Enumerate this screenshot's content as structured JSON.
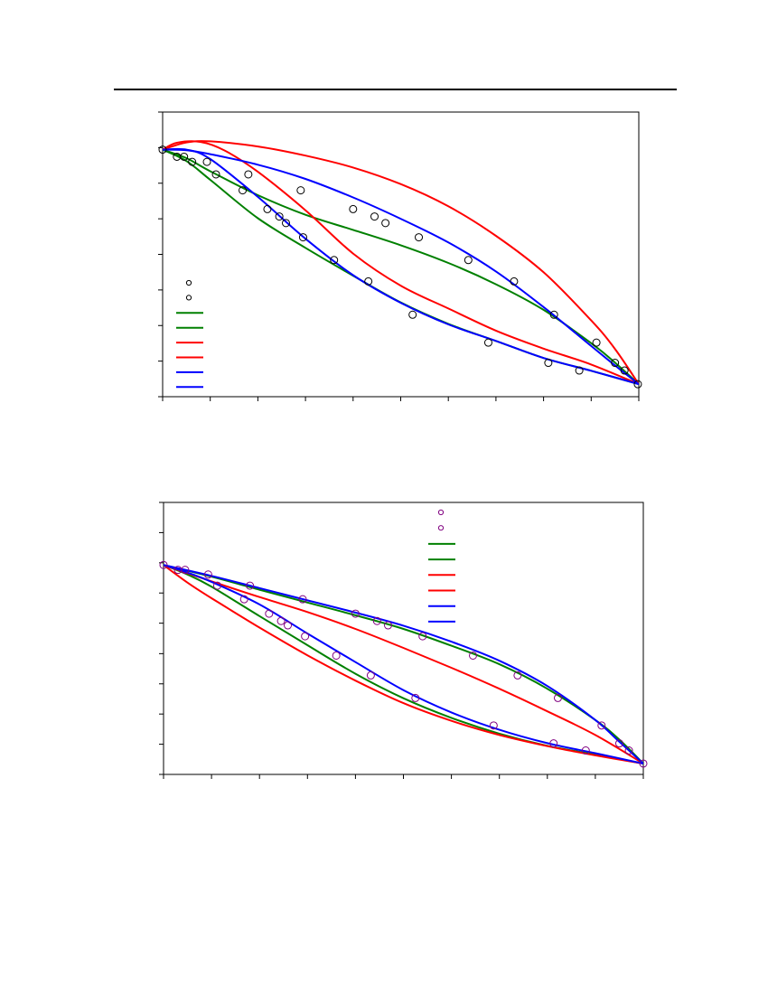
{
  "chart_data": [
    {
      "type": "line",
      "xlim": [
        0,
        1
      ],
      "ylim": [
        0,
        1
      ],
      "x_ticks": [
        0,
        0.1,
        0.2,
        0.3,
        0.4,
        0.5,
        0.6,
        0.7,
        0.8,
        0.9,
        1.0
      ],
      "y_ticks": [
        0,
        0.125,
        0.25,
        0.375,
        0.5,
        0.625,
        0.75,
        0.875,
        1.0
      ],
      "legend_position": "lower-left",
      "grid": false,
      "scatter_series": [
        {
          "color": "#000000",
          "points": [
            [
              0.0,
              0.868
            ],
            [
              0.03,
              0.843
            ],
            [
              0.045,
              0.843
            ],
            [
              0.062,
              0.825
            ],
            [
              0.093,
              0.825
            ],
            [
              0.112,
              0.781
            ],
            [
              0.168,
              0.725
            ],
            [
              0.18,
              0.781
            ],
            [
              0.22,
              0.659
            ],
            [
              0.245,
              0.633
            ],
            [
              0.259,
              0.61
            ],
            [
              0.295,
              0.56
            ],
            [
              0.29,
              0.725
            ],
            [
              0.36,
              0.48
            ],
            [
              0.4,
              0.659
            ],
            [
              0.432,
              0.405
            ],
            [
              0.445,
              0.633
            ],
            [
              0.468,
              0.61
            ],
            [
              0.525,
              0.288
            ],
            [
              0.538,
              0.56
            ],
            [
              0.642,
              0.48
            ],
            [
              0.684,
              0.19
            ],
            [
              0.738,
              0.405
            ],
            [
              0.81,
              0.119
            ],
            [
              0.822,
              0.288
            ],
            [
              0.875,
              0.092
            ],
            [
              0.911,
              0.19
            ],
            [
              0.95,
              0.119
            ],
            [
              0.97,
              0.092
            ],
            [
              0.998,
              0.044
            ]
          ]
        },
        {
          "color": "#000000",
          "points": []
        }
      ],
      "line_series": [
        {
          "color": "#008000",
          "points": [
            [
              0,
              0.868
            ],
            [
              0.05,
              0.838
            ],
            [
              0.1,
              0.792
            ],
            [
              0.2,
              0.708
            ],
            [
              0.3,
              0.639
            ],
            [
              0.4,
              0.586
            ],
            [
              0.5,
              0.532
            ],
            [
              0.6,
              0.47
            ],
            [
              0.7,
              0.395
            ],
            [
              0.8,
              0.305
            ],
            [
              0.9,
              0.188
            ],
            [
              0.95,
              0.12
            ],
            [
              1,
              0.044
            ]
          ]
        },
        {
          "color": "#008000",
          "points": [
            [
              0,
              0.868
            ],
            [
              0.05,
              0.828
            ],
            [
              0.1,
              0.762
            ],
            [
              0.2,
              0.627
            ],
            [
              0.3,
              0.523
            ],
            [
              0.4,
              0.425
            ],
            [
              0.5,
              0.331
            ],
            [
              0.6,
              0.256
            ],
            [
              0.7,
              0.196
            ],
            [
              0.8,
              0.136
            ],
            [
              0.9,
              0.091
            ],
            [
              1,
              0.044
            ]
          ]
        },
        {
          "color": "#ff0000",
          "points": [
            [
              0,
              0.868
            ],
            [
              0.05,
              0.893
            ],
            [
              0.1,
              0.897
            ],
            [
              0.2,
              0.879
            ],
            [
              0.3,
              0.847
            ],
            [
              0.4,
              0.805
            ],
            [
              0.5,
              0.747
            ],
            [
              0.6,
              0.669
            ],
            [
              0.7,
              0.565
            ],
            [
              0.8,
              0.437
            ],
            [
              0.9,
              0.268
            ],
            [
              0.95,
              0.168
            ],
            [
              1,
              0.044
            ]
          ]
        },
        {
          "color": "#ff0000",
          "points": [
            [
              0,
              0.868
            ],
            [
              0.03,
              0.892
            ],
            [
              0.08,
              0.895
            ],
            [
              0.13,
              0.865
            ],
            [
              0.2,
              0.79
            ],
            [
              0.3,
              0.655
            ],
            [
              0.4,
              0.503
            ],
            [
              0.5,
              0.39
            ],
            [
              0.6,
              0.31
            ],
            [
              0.7,
              0.232
            ],
            [
              0.8,
              0.169
            ],
            [
              0.9,
              0.113
            ],
            [
              1,
              0.044
            ]
          ]
        },
        {
          "color": "#0000ff",
          "points": [
            [
              0,
              0.868
            ],
            [
              0.05,
              0.866
            ],
            [
              0.1,
              0.852
            ],
            [
              0.2,
              0.815
            ],
            [
              0.3,
              0.765
            ],
            [
              0.4,
              0.7
            ],
            [
              0.5,
              0.625
            ],
            [
              0.6,
              0.542
            ],
            [
              0.7,
              0.44
            ],
            [
              0.8,
              0.315
            ],
            [
              0.9,
              0.178
            ],
            [
              0.95,
              0.11
            ],
            [
              1,
              0.044
            ]
          ]
        },
        {
          "color": "#0000ff",
          "points": [
            [
              0,
              0.868
            ],
            [
              0.05,
              0.868
            ],
            [
              0.1,
              0.835
            ],
            [
              0.2,
              0.702
            ],
            [
              0.3,
              0.555
            ],
            [
              0.4,
              0.427
            ],
            [
              0.5,
              0.33
            ],
            [
              0.6,
              0.254
            ],
            [
              0.7,
              0.196
            ],
            [
              0.8,
              0.136
            ],
            [
              0.9,
              0.091
            ],
            [
              1,
              0.044
            ]
          ]
        }
      ]
    },
    {
      "type": "line",
      "xlim": [
        0,
        1
      ],
      "ylim": [
        0,
        1
      ],
      "x_ticks": [
        0,
        0.1,
        0.2,
        0.3,
        0.4,
        0.5,
        0.6,
        0.7,
        0.8,
        0.9,
        1.0
      ],
      "y_ticks": [
        0,
        0.111,
        0.222,
        0.333,
        0.444,
        0.556,
        0.667,
        0.778,
        0.889,
        1.0
      ],
      "legend_position": "top-right",
      "grid": false,
      "scatter_series": [
        {
          "color": "#800080",
          "points": [
            [
              0.0,
              0.77
            ],
            [
              0.03,
              0.752
            ],
            [
              0.045,
              0.752
            ],
            [
              0.093,
              0.735
            ],
            [
              0.112,
              0.694
            ],
            [
              0.168,
              0.644
            ],
            [
              0.18,
              0.694
            ],
            [
              0.22,
              0.591
            ],
            [
              0.245,
              0.564
            ],
            [
              0.259,
              0.548
            ],
            [
              0.29,
              0.644
            ],
            [
              0.295,
              0.508
            ],
            [
              0.36,
              0.437
            ],
            [
              0.4,
              0.591
            ],
            [
              0.432,
              0.364
            ],
            [
              0.445,
              0.564
            ],
            [
              0.468,
              0.548
            ],
            [
              0.525,
              0.281
            ],
            [
              0.54,
              0.508
            ],
            [
              0.645,
              0.437
            ],
            [
              0.688,
              0.18
            ],
            [
              0.738,
              0.364
            ],
            [
              0.813,
              0.114
            ],
            [
              0.822,
              0.281
            ],
            [
              0.88,
              0.088
            ],
            [
              0.913,
              0.18
            ],
            [
              0.95,
              0.114
            ],
            [
              0.97,
              0.088
            ],
            [
              1.0,
              0.04
            ]
          ]
        },
        {
          "color": "#800080",
          "points": []
        }
      ],
      "line_series": [
        {
          "color": "#008000",
          "points": [
            [
              0,
              0.77
            ],
            [
              0.1,
              0.727
            ],
            [
              0.2,
              0.679
            ],
            [
              0.3,
              0.632
            ],
            [
              0.4,
              0.585
            ],
            [
              0.5,
              0.535
            ],
            [
              0.6,
              0.473
            ],
            [
              0.7,
              0.405
            ],
            [
              0.8,
              0.315
            ],
            [
              0.9,
              0.2
            ],
            [
              0.95,
              0.128
            ],
            [
              1,
              0.04
            ]
          ]
        },
        {
          "color": "#008000",
          "points": [
            [
              0,
              0.77
            ],
            [
              0.05,
              0.735
            ],
            [
              0.1,
              0.69
            ],
            [
              0.2,
              0.582
            ],
            [
              0.3,
              0.475
            ],
            [
              0.4,
              0.37
            ],
            [
              0.5,
              0.28
            ],
            [
              0.6,
              0.208
            ],
            [
              0.7,
              0.15
            ],
            [
              0.8,
              0.105
            ],
            [
              0.9,
              0.073
            ],
            [
              1,
              0.04
            ]
          ]
        },
        {
          "color": "#ff0000",
          "points": [
            [
              0,
              0.77
            ],
            [
              0.1,
              0.71
            ],
            [
              0.2,
              0.652
            ],
            [
              0.3,
              0.597
            ],
            [
              0.4,
              0.535
            ],
            [
              0.5,
              0.465
            ],
            [
              0.6,
              0.392
            ],
            [
              0.7,
              0.315
            ],
            [
              0.8,
              0.232
            ],
            [
              0.9,
              0.145
            ],
            [
              1,
              0.04
            ]
          ]
        },
        {
          "color": "#ff0000",
          "points": [
            [
              0,
              0.77
            ],
            [
              0.05,
              0.705
            ],
            [
              0.1,
              0.648
            ],
            [
              0.2,
              0.54
            ],
            [
              0.3,
              0.438
            ],
            [
              0.4,
              0.345
            ],
            [
              0.5,
              0.262
            ],
            [
              0.6,
              0.197
            ],
            [
              0.7,
              0.145
            ],
            [
              0.8,
              0.104
            ],
            [
              0.9,
              0.07
            ],
            [
              1,
              0.04
            ]
          ]
        },
        {
          "color": "#0000ff",
          "points": [
            [
              0,
              0.77
            ],
            [
              0.1,
              0.73
            ],
            [
              0.2,
              0.685
            ],
            [
              0.3,
              0.64
            ],
            [
              0.4,
              0.595
            ],
            [
              0.5,
              0.547
            ],
            [
              0.6,
              0.488
            ],
            [
              0.7,
              0.418
            ],
            [
              0.8,
              0.325
            ],
            [
              0.9,
              0.2
            ],
            [
              0.95,
              0.12
            ],
            [
              1,
              0.04
            ]
          ]
        },
        {
          "color": "#0000ff",
          "points": [
            [
              0,
              0.77
            ],
            [
              0.05,
              0.742
            ],
            [
              0.1,
              0.708
            ],
            [
              0.2,
              0.625
            ],
            [
              0.3,
              0.518
            ],
            [
              0.4,
              0.413
            ],
            [
              0.5,
              0.31
            ],
            [
              0.6,
              0.228
            ],
            [
              0.7,
              0.164
            ],
            [
              0.8,
              0.115
            ],
            [
              0.9,
              0.078
            ],
            [
              1,
              0.04
            ]
          ]
        }
      ]
    }
  ]
}
